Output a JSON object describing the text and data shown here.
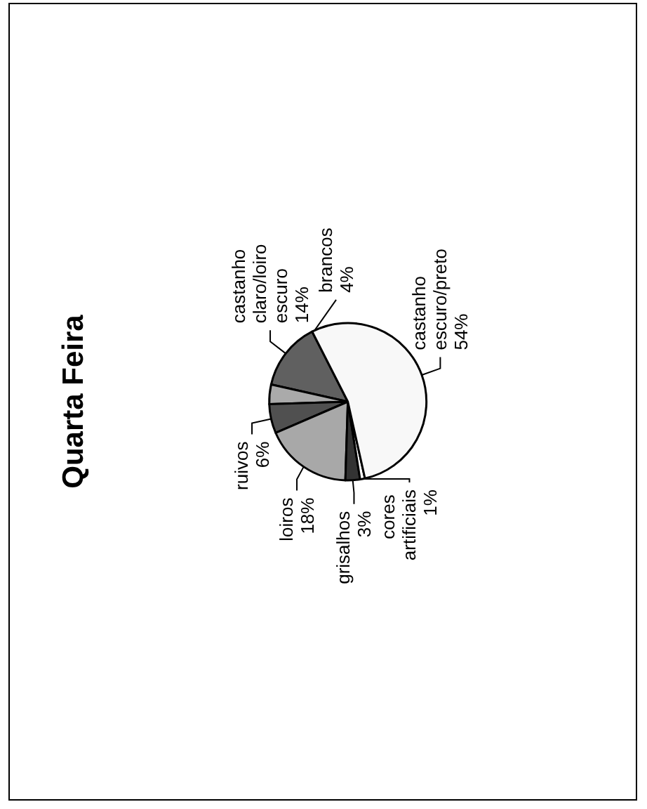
{
  "chart_data": {
    "type": "pie",
    "title": "Quarta Feira",
    "categories": [
      "castanho claro/loiro escuro",
      "brancos",
      "ruivos",
      "loiros",
      "grisalhos",
      "cores artificiais",
      "castanho escuro/preto"
    ],
    "values": [
      14,
      4,
      6,
      18,
      3,
      1,
      54
    ],
    "value_labels": [
      "14%",
      "4%",
      "6%",
      "18%",
      "3%",
      "1%",
      "54%"
    ],
    "colors": [
      "#606060",
      "#aaaaaa",
      "#505050",
      "#a8a8a8",
      "#333333",
      "#ffffff",
      "#f8f8f8"
    ],
    "legend": false
  }
}
